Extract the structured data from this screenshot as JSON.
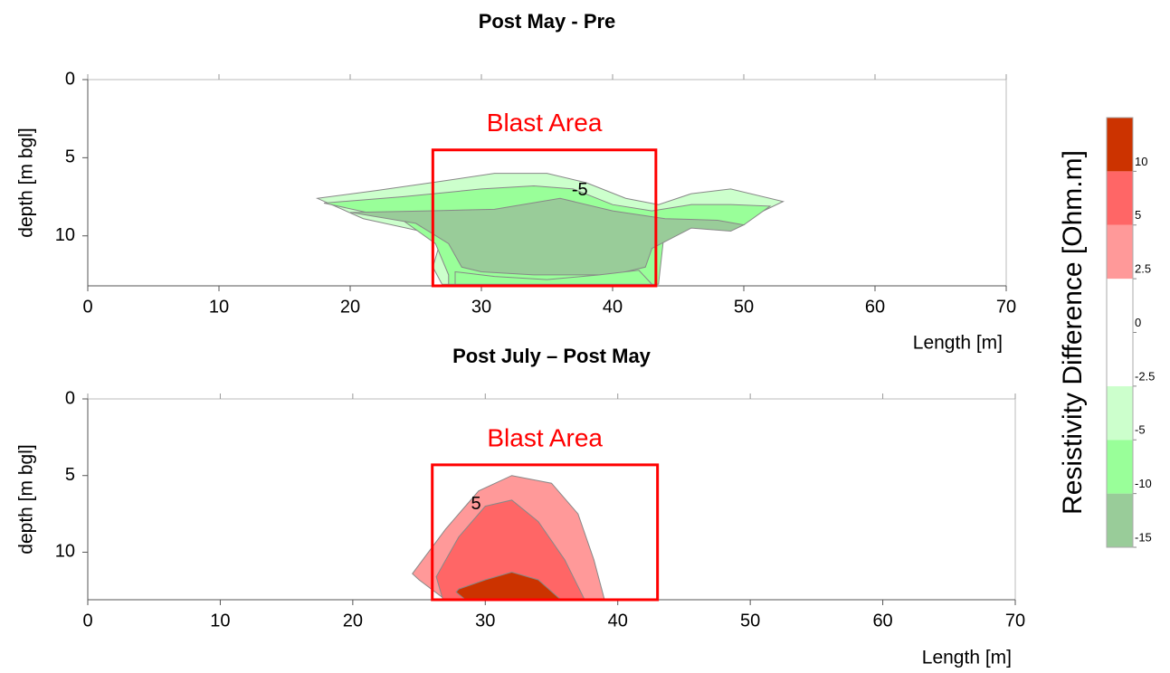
{
  "chart_data": [
    {
      "type": "contour",
      "title": "Post May - Pre",
      "xlabel": "Length [m]",
      "ylabel": "depth [m bgl]",
      "xlim": [
        0,
        70
      ],
      "ylim": [
        0,
        13.2
      ],
      "xticks": [
        0,
        10,
        20,
        30,
        40,
        50,
        60,
        70
      ],
      "yticks": [
        0,
        5,
        10
      ],
      "annotation": {
        "label": "Blast Area",
        "x": [
          26.3,
          43.3
        ],
        "y": [
          4.5,
          13.2
        ]
      },
      "contour_labels": [
        {
          "x": 37.5,
          "y": 7.1,
          "value": -5
        }
      ],
      "regions": [
        {
          "color": "#ccffcc",
          "x": [
            17.5,
            22,
            27,
            31,
            35,
            38,
            41,
            43.5,
            46,
            49,
            53,
            50,
            44,
            43.3,
            27,
            26.3,
            27,
            21
          ],
          "y": [
            7.6,
            7.1,
            6.5,
            6.0,
            6.0,
            6.6,
            7.6,
            8.0,
            7.3,
            7.0,
            7.8,
            9.0,
            9.0,
            13.1,
            13.1,
            12,
            10,
            8.9
          ]
        },
        {
          "color": "#99ff99",
          "x": [
            18,
            24,
            30,
            34,
            37,
            40,
            43,
            46,
            49,
            52,
            50,
            44,
            43.5,
            27.5,
            27.5,
            26.5,
            24
          ],
          "y": [
            7.9,
            7.5,
            7.0,
            6.8,
            7.0,
            8.0,
            8.4,
            8.0,
            8.0,
            8.1,
            9.3,
            9.3,
            13.1,
            13.1,
            12.5,
            10.5,
            9.0
          ]
        },
        {
          "color": "#99cc99",
          "x": [
            20,
            26,
            31,
            36,
            40,
            44,
            48,
            50,
            49,
            46,
            43,
            42.5,
            40,
            37,
            34,
            30,
            28.5,
            27.5,
            25
          ],
          "y": [
            8.5,
            8.4,
            8.3,
            7.6,
            8.4,
            8.9,
            9.0,
            9.3,
            9.7,
            9.5,
            10.8,
            12,
            12.5,
            12.5,
            12.5,
            12.3,
            12.0,
            10.5,
            9.2
          ]
        },
        {
          "color": "#99ff99",
          "x": [
            28,
            31,
            35,
            39,
            42,
            43,
            28
          ],
          "y": [
            12.3,
            12.6,
            12.8,
            12.5,
            12.2,
            13.1,
            13.1
          ]
        }
      ]
    },
    {
      "type": "contour",
      "title": "Post July – Post May",
      "xlabel": "Length [m]",
      "ylabel": "depth [m bgl]",
      "xlim": [
        0,
        70
      ],
      "ylim": [
        0,
        13.1
      ],
      "xticks": [
        0,
        10,
        20,
        30,
        40,
        50,
        60,
        70
      ],
      "yticks": [
        0,
        5,
        10
      ],
      "annotation": {
        "label": "Blast Area",
        "x": [
          26.0,
          43.0
        ],
        "y": [
          4.3,
          13.1
        ]
      },
      "contour_labels": [
        {
          "x": 29.3,
          "y": 6.9,
          "value": 5
        }
      ],
      "regions": [
        {
          "color": "#ff9999",
          "x": [
            24.5,
            27,
            29.5,
            32,
            35,
            37,
            38.2,
            39,
            27,
            25
          ],
          "y": [
            11.4,
            8.5,
            6.0,
            5.0,
            5.5,
            7.5,
            10.5,
            13.1,
            13.1,
            11.8
          ]
        },
        {
          "color": "#ff6666",
          "x": [
            26.3,
            28,
            30,
            32,
            34,
            36,
            37.5,
            26.8
          ],
          "y": [
            11.6,
            9,
            7,
            6.6,
            8,
            10.5,
            13.1,
            13.1
          ]
        },
        {
          "color": "#cc3300",
          "x": [
            28,
            30,
            32,
            34,
            35.7,
            28.5,
            27.8
          ],
          "y": [
            12.4,
            11.8,
            11.3,
            11.8,
            13.1,
            13.1,
            12.6
          ]
        }
      ]
    },
    {
      "type": "colorbar",
      "label": "Resistivity Difference [Ohm.m]",
      "levels": [
        -15,
        -10,
        -5,
        -2.5,
        0,
        2.5,
        5,
        10
      ],
      "colors": [
        "#99cc99",
        "#99ff99",
        "#ccffcc",
        "#ffffff",
        "#ffffff",
        "#ff9999",
        "#ff6666",
        "#cc3300"
      ]
    }
  ]
}
